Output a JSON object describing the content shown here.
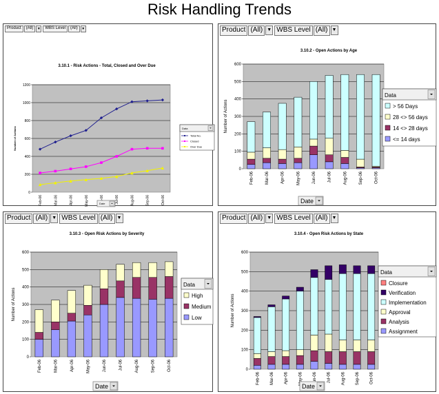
{
  "page": {
    "title": "Risk Handling Trends"
  },
  "filters": {
    "product": "Product",
    "product_value": "(All)",
    "wbs": "WBS Level",
    "wbs_value": "(All)",
    "dropdown_glyph": "▼"
  },
  "chart_data": [
    {
      "id": "c1",
      "type": "line",
      "title": "3.10.1 - Risk Actions - Total, Closed and Over Due",
      "ylabel": "Number of Actions",
      "xlabel": "",
      "categories": [
        "Feb-06",
        "Mar-06",
        "Apr-06",
        "May-06",
        "Jun-06",
        "Jul-06",
        "Aug-06",
        "Sep-06",
        "Oct-06"
      ],
      "ylim": [
        0,
        1200
      ],
      "yticks": [
        0,
        200,
        400,
        600,
        800,
        1000,
        1200
      ],
      "grid": true,
      "legend_position": "right",
      "legend_title": "Data",
      "field_button": "Date",
      "series": [
        {
          "name": "Total No.",
          "color": "#1f1f8f",
          "marker": "diamond",
          "values": [
            480,
            560,
            630,
            690,
            830,
            930,
            1010,
            1020,
            1030
          ]
        },
        {
          "name": "Closed",
          "color": "#ff00ff",
          "marker": "square",
          "values": [
            215,
            235,
            260,
            285,
            330,
            400,
            480,
            490,
            490
          ]
        },
        {
          "name": "Over Due",
          "color": "#f2f200",
          "marker": "triangle",
          "values": [
            85,
            105,
            125,
            140,
            155,
            175,
            215,
            240,
            270
          ]
        }
      ]
    },
    {
      "id": "c2",
      "type": "bar",
      "stacked": true,
      "title": "3.10.2 - Open Actions by Age",
      "ylabel": "Number of Actions",
      "xlabel": "",
      "categories": [
        "Feb-06",
        "Mar-06",
        "Apr-06",
        "May-06",
        "Jun-06",
        "Jul-06",
        "Aug-06",
        "Sep-06",
        "Oct-06"
      ],
      "ylim": [
        0,
        600
      ],
      "yticks": [
        0,
        100,
        200,
        300,
        400,
        500,
        600
      ],
      "grid": true,
      "legend_position": "right",
      "legend_title": "Data",
      "field_button": "Date",
      "series": [
        {
          "name": "<= 14 days",
          "color": "#9999ff",
          "values": [
            25,
            35,
            30,
            35,
            80,
            40,
            30,
            5,
            5
          ]
        },
        {
          "name": "14 <> 28 days",
          "color": "#993366",
          "values": [
            30,
            25,
            25,
            25,
            50,
            40,
            35,
            5,
            5
          ]
        },
        {
          "name": "28 <> 56 days",
          "color": "#ffffcc",
          "values": [
            40,
            60,
            55,
            65,
            40,
            95,
            40,
            45,
            5
          ]
        },
        {
          "name": "> 56 Days",
          "color": "#ccffff",
          "values": [
            175,
            205,
            265,
            285,
            330,
            360,
            435,
            485,
            525
          ]
        }
      ]
    },
    {
      "id": "c3",
      "type": "bar",
      "stacked": true,
      "title": "3.10.3 - Open Risk Actions by Severity",
      "ylabel": "Number of Actions",
      "xlabel": "",
      "categories": [
        "Feb-06",
        "Mar-06",
        "Apr-06",
        "May-06",
        "Jun-06",
        "Jul-06",
        "Aug-06",
        "Sep-06",
        "Oct-06"
      ],
      "ylim": [
        0,
        600
      ],
      "yticks": [
        0,
        100,
        200,
        300,
        400,
        500,
        600
      ],
      "grid": true,
      "legend_position": "right",
      "legend_title": "Data",
      "field_button": "Date",
      "series": [
        {
          "name": "Low",
          "color": "#9999ff",
          "values": [
            100,
            155,
            205,
            240,
            300,
            340,
            335,
            330,
            335
          ]
        },
        {
          "name": "Medium",
          "color": "#993366",
          "values": [
            40,
            45,
            45,
            55,
            90,
            95,
            120,
            125,
            125
          ]
        },
        {
          "name": "High",
          "color": "#ffffcc",
          "values": [
            130,
            125,
            130,
            115,
            110,
            95,
            85,
            85,
            85
          ]
        }
      ]
    },
    {
      "id": "c4",
      "type": "bar",
      "stacked": true,
      "title": "3.10.4 - Open Risk Actions  by State",
      "ylabel": "Number of Actions",
      "xlabel": "",
      "categories": [
        "Feb-06",
        "Mar-06",
        "Apr-06",
        "May-06",
        "Jun-06",
        "Jul-06",
        "Aug-06",
        "Sep-06",
        "Oct-06"
      ],
      "ylim": [
        0,
        600
      ],
      "yticks": [
        0,
        100,
        200,
        300,
        400,
        500,
        600
      ],
      "grid": true,
      "legend_position": "right",
      "legend_title": "Data",
      "field_button": "Date",
      "series": [
        {
          "name": "Assignment",
          "color": "#9999ff",
          "values": [
            20,
            25,
            25,
            25,
            40,
            30,
            25,
            25,
            25
          ]
        },
        {
          "name": "Analysis",
          "color": "#993366",
          "values": [
            35,
            40,
            40,
            45,
            55,
            60,
            65,
            65,
            65
          ]
        },
        {
          "name": "Approval",
          "color": "#ffffcc",
          "values": [
            25,
            25,
            30,
            30,
            80,
            90,
            60,
            60,
            60
          ]
        },
        {
          "name": "Implementation",
          "color": "#ccffff",
          "values": [
            185,
            230,
            265,
            300,
            295,
            280,
            340,
            340,
            340
          ]
        },
        {
          "name": "Verification",
          "color": "#330066",
          "values": [
            5,
            10,
            15,
            20,
            40,
            70,
            45,
            40,
            40
          ]
        },
        {
          "name": "Closure",
          "color": "#ff8080",
          "values": [
            0,
            0,
            0,
            0,
            0,
            0,
            0,
            0,
            0
          ]
        }
      ]
    }
  ]
}
